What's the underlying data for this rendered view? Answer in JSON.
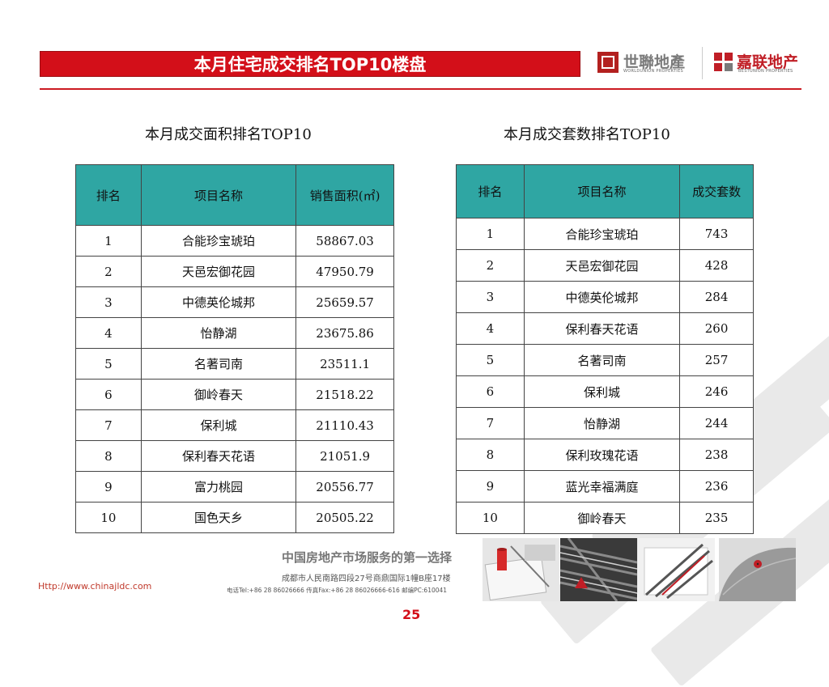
{
  "header": {
    "title": "本月住宅成交排名TOP10楼盘",
    "logo_worldunion_cn": "世聯地產",
    "logo_worldunion_en": "WORLDUNION PROPERTIES",
    "logo_bestunion_cn": "嘉联地产",
    "logo_bestunion_en": "BESTUNION PROPERTIES"
  },
  "area_table": {
    "caption": "本月成交面积排名TOP10",
    "headers": [
      "排名",
      "项目名称",
      "销售面积(㎡)"
    ],
    "rows": [
      [
        "1",
        "合能珍宝琥珀",
        "58867.03"
      ],
      [
        "2",
        "天邑宏御花园",
        "47950.79"
      ],
      [
        "3",
        "中德英伦城邦",
        "25659.57"
      ],
      [
        "4",
        "怡静湖",
        "23675.86"
      ],
      [
        "5",
        "名著司南",
        "23511.1"
      ],
      [
        "6",
        "御岭春天",
        "21518.22"
      ],
      [
        "7",
        "保利城",
        "21110.43"
      ],
      [
        "8",
        "保利春天花语",
        "21051.9"
      ],
      [
        "9",
        "富力桃园",
        "20556.77"
      ],
      [
        "10",
        "国色天乡",
        "20505.22"
      ]
    ]
  },
  "units_table": {
    "caption": "本月成交套数排名TOP10",
    "headers": [
      "排名",
      "项目名称",
      "成交套数"
    ],
    "rows": [
      [
        "1",
        "合能珍宝琥珀",
        "743"
      ],
      [
        "2",
        "天邑宏御花园",
        "428"
      ],
      [
        "3",
        "中德英伦城邦",
        "284"
      ],
      [
        "4",
        "保利春天花语",
        "260"
      ],
      [
        "5",
        "名著司南",
        "257"
      ],
      [
        "6",
        "保利城",
        "246"
      ],
      [
        "7",
        "怡静湖",
        "244"
      ],
      [
        "8",
        "保利玫瑰花语",
        "238"
      ],
      [
        "9",
        "蓝光幸福满庭",
        "236"
      ],
      [
        "10",
        "御岭春天",
        "235"
      ]
    ]
  },
  "footer": {
    "slogan": "中国房地产市场服务的第一选择",
    "address": "成都市人民南路四段27号商鼎国际1幢B座17楼",
    "contact": "电话Tel:+86 28 86026666 传真Fax:+86 28 86026666-616 邮编PC:610041",
    "url": "Http://www.chinajldc.com",
    "page_number": "25"
  },
  "colors": {
    "title_bar": "#d30f19",
    "table_header": "#2fa6a3",
    "accent_rule": "#cc1a22"
  }
}
